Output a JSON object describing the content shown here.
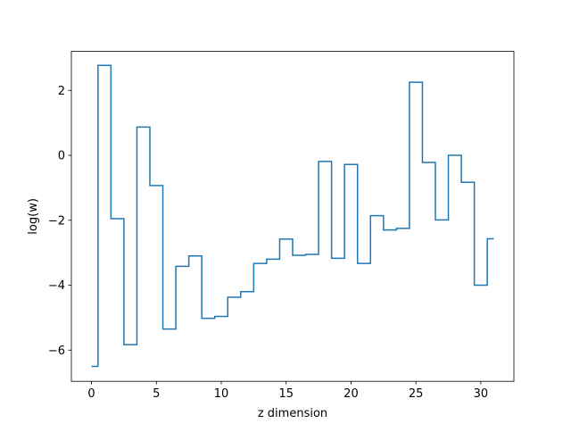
{
  "chart_data": {
    "type": "line",
    "drawstyle": "steps-mid",
    "title": "",
    "xlabel": "z dimension",
    "ylabel": "log(w)",
    "xlim": [
      -1.55,
      32.55
    ],
    "ylim": [
      -6.96,
      3.2
    ],
    "xticks": [
      0,
      5,
      10,
      15,
      20,
      25,
      30
    ],
    "xtick_labels": [
      "0",
      "5",
      "10",
      "15",
      "20",
      "25",
      "30"
    ],
    "yticks": [
      -6,
      -4,
      -2,
      0,
      2
    ],
    "ytick_labels": [
      "−6",
      "−4",
      "−2",
      "0",
      "2"
    ],
    "grid": false,
    "legend": null,
    "series": [
      {
        "color": "#1f77b4",
        "x": [
          0,
          1,
          2,
          3,
          4,
          5,
          6,
          7,
          8,
          9,
          10,
          11,
          12,
          13,
          14,
          15,
          16,
          17,
          18,
          19,
          20,
          21,
          22,
          23,
          24,
          25,
          26,
          27,
          28,
          29,
          30,
          31
        ],
        "y": [
          -6.5,
          2.77,
          -1.95,
          -5.83,
          0.87,
          -0.93,
          -5.35,
          -3.42,
          -3.1,
          -5.02,
          -4.96,
          -4.37,
          -4.2,
          -3.33,
          -3.2,
          -2.58,
          -3.08,
          -3.05,
          -0.19,
          -3.17,
          -0.28,
          -3.33,
          -1.86,
          -2.3,
          -2.25,
          2.25,
          -0.22,
          -1.99,
          0.0,
          -0.83,
          -4.0,
          -2.57
        ]
      }
    ]
  }
}
